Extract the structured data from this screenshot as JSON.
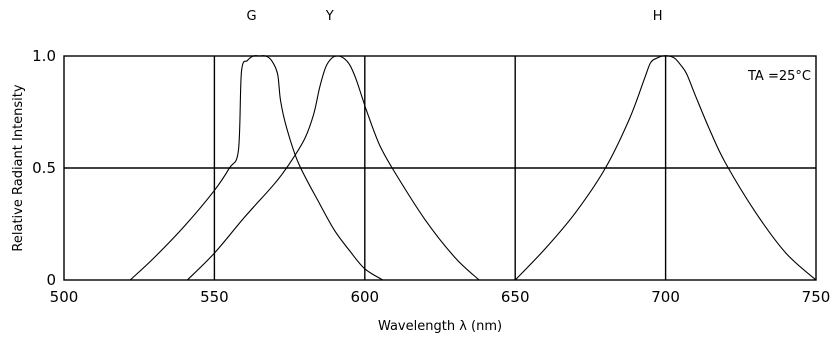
{
  "chart_data": {
    "type": "line",
    "title": "",
    "xlabel": "Wavelength λ (nm)",
    "ylabel": "Relative Radiant Intensity",
    "xlim": [
      500,
      750
    ],
    "ylim": [
      0,
      1.0
    ],
    "x_ticks": [
      500,
      550,
      600,
      650,
      700,
      750
    ],
    "x_tick_labels": [
      "500",
      "550",
      "600",
      "650",
      "700",
      "750"
    ],
    "y_ticks": [
      0,
      0.5,
      1.0
    ],
    "y_tick_labels": [
      "0",
      "0.5",
      "1.0"
    ],
    "grid": "vertical lines at 550, 600, 650, 700; horizontal line at 0.5",
    "annotation": "TA =25°C",
    "colors": {
      "line": "#000000",
      "background": "#ffffff"
    },
    "series": [
      {
        "name": "G",
        "x": [
          522,
          530,
          540,
          550,
          555,
          558,
          559,
          561,
          563,
          565,
          567,
          569,
          571,
          572,
          574,
          578,
          585,
          590,
          595,
          600,
          606
        ],
        "y": [
          0.0,
          0.1,
          0.24,
          0.4,
          0.5,
          0.58,
          0.93,
          0.98,
          1.0,
          1.0,
          1.0,
          0.98,
          0.92,
          0.8,
          0.68,
          0.52,
          0.34,
          0.22,
          0.13,
          0.05,
          0.0
        ]
      },
      {
        "name": "Y",
        "x": [
          541,
          550,
          560,
          570,
          575,
          580,
          583,
          585,
          587,
          589,
          591,
          593,
          595,
          597,
          599,
          601,
          605,
          610,
          620,
          630,
          638
        ],
        "y": [
          0.0,
          0.12,
          0.28,
          0.43,
          0.52,
          0.63,
          0.74,
          0.86,
          0.95,
          0.99,
          1.0,
          0.99,
          0.96,
          0.9,
          0.82,
          0.74,
          0.6,
          0.48,
          0.27,
          0.1,
          0.0
        ]
      },
      {
        "name": "H",
        "x": [
          650,
          660,
          670,
          680,
          688,
          693,
          695,
          697,
          699,
          701,
          703,
          705,
          707,
          710,
          715,
          720,
          730,
          740,
          750
        ],
        "y": [
          0.0,
          0.14,
          0.3,
          0.5,
          0.72,
          0.9,
          0.97,
          0.99,
          1.0,
          1.0,
          0.99,
          0.96,
          0.92,
          0.82,
          0.66,
          0.52,
          0.3,
          0.12,
          0.0
        ]
      }
    ]
  }
}
